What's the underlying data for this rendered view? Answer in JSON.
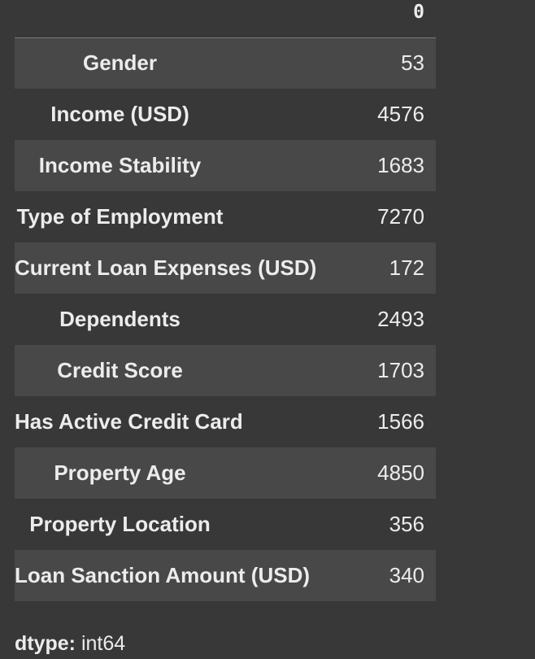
{
  "table": {
    "column_header": "0",
    "rows": [
      {
        "label": "Gender",
        "value": "53"
      },
      {
        "label": "Income (USD)",
        "value": "4576"
      },
      {
        "label": "Income Stability",
        "value": "1683"
      },
      {
        "label": "Type of Employment",
        "value": "7270"
      },
      {
        "label": "Current Loan Expenses (USD)",
        "value": "172"
      },
      {
        "label": "Dependents",
        "value": "2493"
      },
      {
        "label": "Credit Score",
        "value": "1703"
      },
      {
        "label": "Has Active Credit Card",
        "value": "1566"
      },
      {
        "label": "Property Age",
        "value": "4850"
      },
      {
        "label": "Property Location",
        "value": "356"
      },
      {
        "label": "Loan Sanction Amount (USD)",
        "value": "340"
      }
    ]
  },
  "dtype": {
    "key": "dtype:",
    "value": "int64"
  },
  "colors": {
    "background": "#383838",
    "shaded_row": "#484848",
    "text": "#ececec"
  }
}
